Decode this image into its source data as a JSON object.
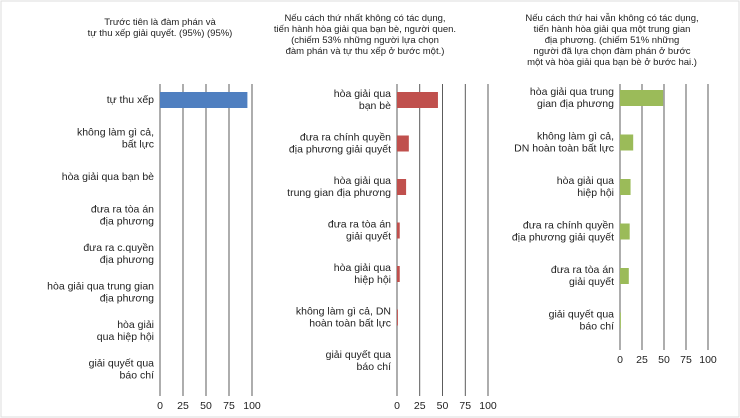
{
  "chart_data": [
    {
      "type": "bar",
      "orientation": "horizontal",
      "title": "Trước tiên là đàm phán và\ntự thu xếp giải quyết. (95%) (95%)",
      "categories": [
        "tự thu xếp",
        "không làm gì cả,\nbất lực",
        "hòa giải qua bạn bè",
        "đưa ra tòa án\nđịa phương",
        "đưa ra c.quyền\nđịa phương",
        "hòa giải qua trung gian\nđịa phương",
        "hòa giải\nqua hiệp hội",
        "giải quyết qua\nbáo chí"
      ],
      "values": [
        95,
        0,
        0,
        0,
        0,
        0,
        0,
        0
      ],
      "color": "#4f7fc0",
      "xlim": [
        0,
        100
      ],
      "xticks": [
        0,
        25,
        50,
        75,
        100
      ],
      "grid": true
    },
    {
      "type": "bar",
      "orientation": "horizontal",
      "title": "Nếu cách thứ nhất không có tác dụng,\ntiến hành hòa giải qua bạn bè, người quen.\n(chiếm 53% những người lựa chọn\nđàm phán và tự thu xếp ở bước một.)",
      "categories": [
        "hòa giải qua\nbạn bè",
        "đưa ra chính quyền\nđịa phương giải quyết",
        "hòa giải qua\ntrung gian địa phương",
        "đưa ra tòa án\ngiải quyết",
        "hòa giải qua\nhiệp hội",
        "không làm gì cả, DN\nhoàn toàn bất lực",
        "giải quyết qua\nbáo chí"
      ],
      "values": [
        45,
        13,
        10,
        3,
        3,
        1,
        0
      ],
      "color": "#c0504d",
      "xlim": [
        0,
        100
      ],
      "xticks": [
        0,
        25,
        50,
        75,
        100
      ],
      "grid": true
    },
    {
      "type": "bar",
      "orientation": "horizontal",
      "title": "Nếu cách thứ hai vẫn không có tác dụng,\ntiến hành hòa giải qua một trung gian\nđịa phương. (chiếm 51% những\nngười đã lựa chọn đàm phán ở bước\nmột và hòa giải qua bạn bè ở bước hai.)",
      "categories": [
        "hòa giải qua trung\ngian địa phương",
        "không làm gì cả,\nDN hoàn toàn bất lực",
        "hòa giải qua\nhiệp hội",
        "đưa ra chính quyền\nđịa phương giải quyết",
        "đưa ra tòa án\ngiải quyết",
        "giải quyết qua\nbáo chí"
      ],
      "values": [
        49,
        15,
        12,
        11,
        10,
        1
      ],
      "color": "#9bbb59",
      "xlim": [
        0,
        100
      ],
      "xticks": [
        0,
        25,
        50,
        75,
        100
      ],
      "grid": true
    }
  ]
}
